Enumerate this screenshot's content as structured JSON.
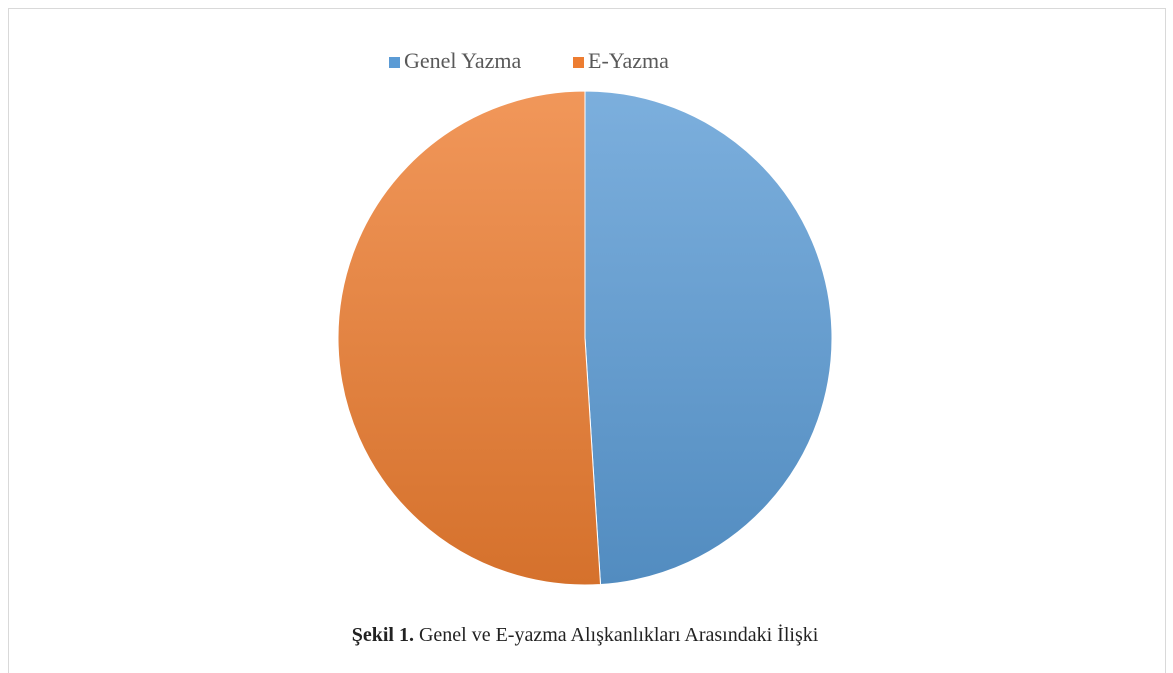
{
  "chart_data": {
    "type": "pie",
    "categories": [
      "Genel Yazma",
      "E-Yazma"
    ],
    "values": [
      49,
      51
    ],
    "colors": [
      "#5b9bd5",
      "#ed7d31"
    ],
    "legend": "top",
    "caption_label": "Şekil 1.",
    "caption": "Genel ve E-yazma Alışkanlıkları Arasındaki İlişki"
  }
}
